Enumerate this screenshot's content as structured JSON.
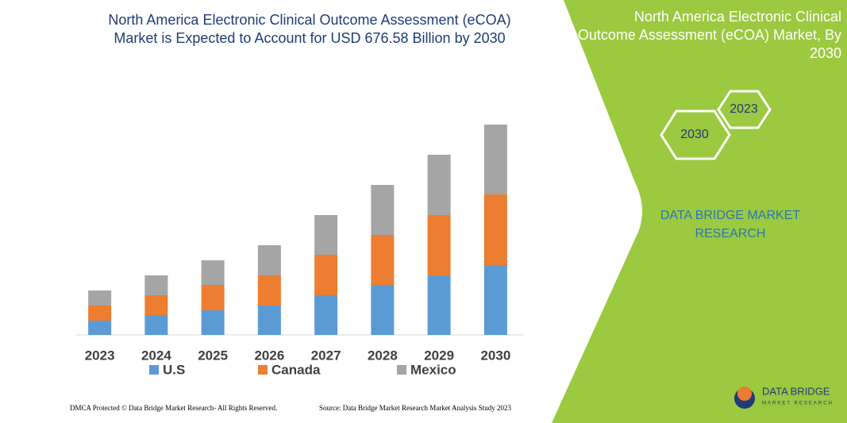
{
  "chart_data": {
    "type": "stacked-bar",
    "title": "North America Electronic Clinical Outcome Assessment (eCOA) Market is Expected to Account for USD 676.58 Billion by 2030",
    "categories": [
      "2023",
      "2024",
      "2025",
      "2026",
      "2027",
      "2028",
      "2029",
      "2030"
    ],
    "series": [
      {
        "name": "U.S",
        "color": "#5b9bd5",
        "values": [
          18,
          25,
          31,
          37,
          50,
          63,
          75,
          88
        ]
      },
      {
        "name": "Canada",
        "color": "#ed7d31",
        "values": [
          19,
          25,
          32,
          38,
          51,
          63,
          76,
          89
        ]
      },
      {
        "name": "Mexico",
        "color": "#a5a5a5",
        "values": [
          19,
          25,
          31,
          38,
          50,
          63,
          76,
          88
        ]
      }
    ],
    "legend": "bottom"
  },
  "panel": {
    "title": "North America Electronic Clinical Outcome Assessment (eCOA) Market, By 2030",
    "hexagons": [
      "2023",
      "2030"
    ],
    "brand": "DATA BRIDGE MARKET RESEARCH"
  },
  "logo": {
    "name": "DATA BRIDGE",
    "tagline": "MARKET RESEARCH"
  },
  "footer": {
    "left": "DMCA Protected © Data Bridge Market Research- All Rights Reserved.",
    "right": "Source: Data Bridge Market Research Market Analysis Study 2023"
  }
}
